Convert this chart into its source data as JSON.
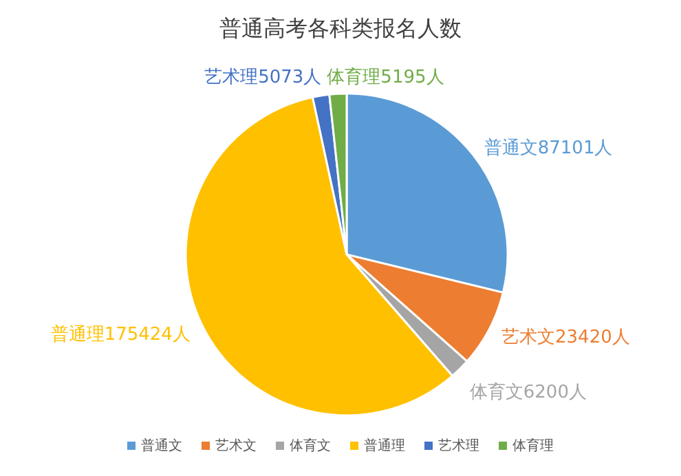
{
  "chart_data": {
    "type": "pie",
    "title": "普通高考各科类报名人数",
    "categories": [
      "普通文",
      "艺术文",
      "体育文",
      "普通理",
      "艺术理",
      "体育理"
    ],
    "values": [
      87101,
      23420,
      6200,
      175424,
      5073,
      5195
    ],
    "colors": [
      "#5b9bd5",
      "#ed7d31",
      "#a5a5a5",
      "#ffc000",
      "#4472c4",
      "#70ad47"
    ],
    "value_labels": [
      "普通文87101人",
      "艺术文23420人",
      "体育文6200人",
      "普通理175424人",
      "艺术理5073人",
      "体育理5195人"
    ],
    "legend": "bottom"
  }
}
